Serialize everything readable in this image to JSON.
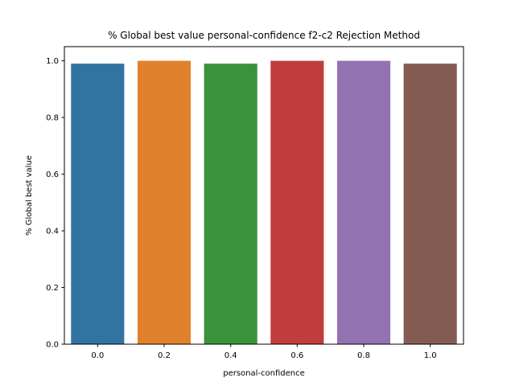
{
  "chart_data": {
    "type": "bar",
    "title": "% Global best value personal-confidence f2-c2 Rejection Method",
    "xlabel": "personal-confidence",
    "ylabel": "% Global best value",
    "categories": [
      "0.0",
      "0.2",
      "0.4",
      "0.6",
      "0.8",
      "1.0"
    ],
    "values": [
      0.99,
      1.0,
      0.99,
      1.0,
      1.0,
      0.99
    ],
    "colors": [
      "#3274a1",
      "#e1812c",
      "#3a923a",
      "#c03d3e",
      "#9372b2",
      "#845b53"
    ],
    "ylim": [
      0,
      1.05
    ],
    "yticks": [
      "0.0",
      "0.2",
      "0.4",
      "0.6",
      "0.8",
      "1.0"
    ],
    "grid": false,
    "legend": "none"
  }
}
